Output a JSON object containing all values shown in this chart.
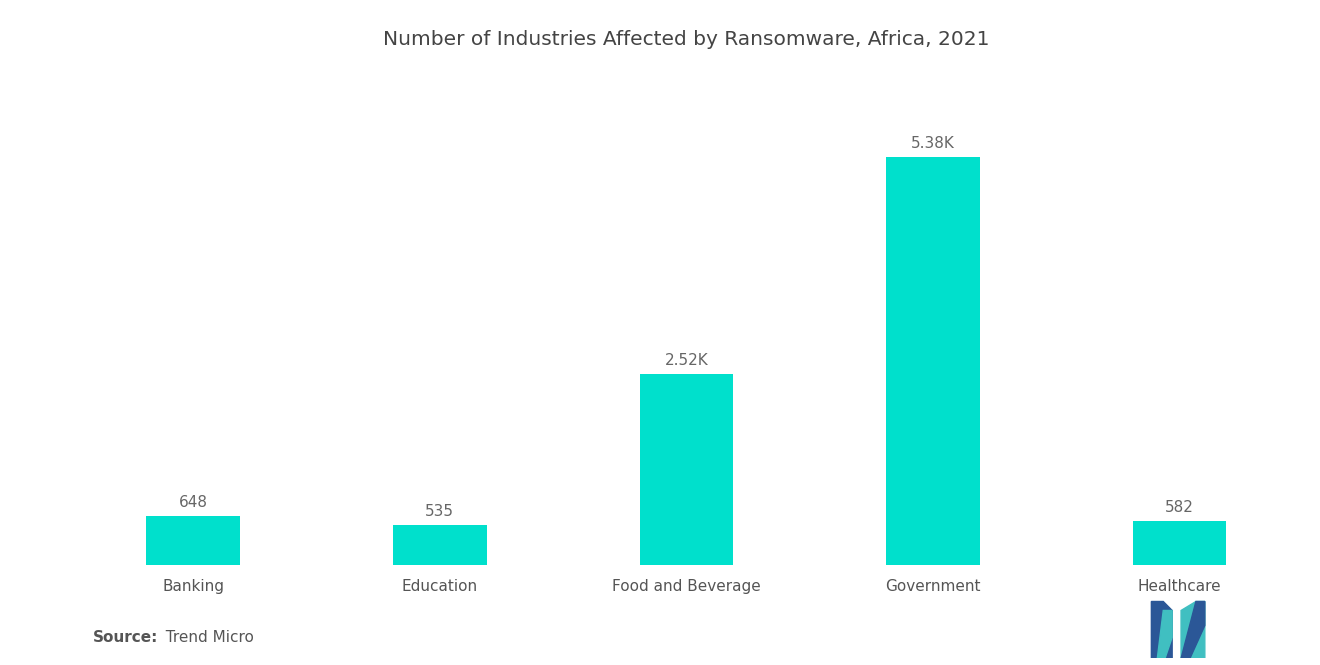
{
  "title": "Number of Industries Affected by Ransomware, Africa, 2021",
  "categories": [
    "Banking",
    "Education",
    "Food and Beverage",
    "Government",
    "Healthcare"
  ],
  "values": [
    648,
    535,
    2520,
    5380,
    582
  ],
  "labels": [
    "648",
    "535",
    "2.52K",
    "5.38K",
    "582"
  ],
  "bar_color": "#00E0CC",
  "background_color": "#FFFFFF",
  "source_bold": "Source:",
  "source_normal": "  Trend Micro",
  "ylim": [
    0,
    6400
  ],
  "title_fontsize": 14.5,
  "label_fontsize": 11,
  "tick_fontsize": 11,
  "source_fontsize": 11,
  "bar_width": 0.38
}
